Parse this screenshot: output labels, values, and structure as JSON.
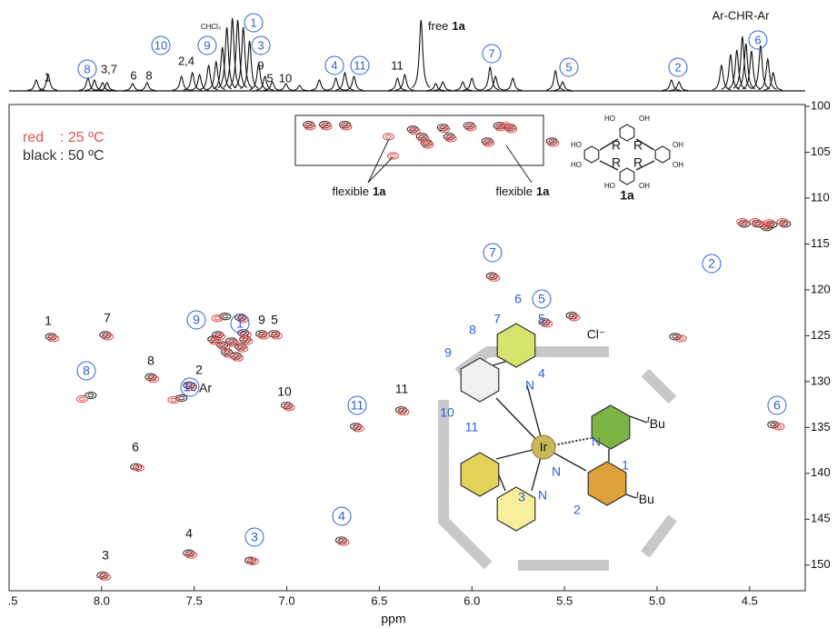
{
  "chart_data": {
    "type": "hsqc",
    "xlabel": "ppm",
    "xlim": [
      8.5,
      4.2
    ],
    "ylim": [
      99.8,
      152.8
    ],
    "xticks": [
      {
        "value": 8.5,
        "label": ".5"
      },
      {
        "value": 8,
        "label": "8.0"
      },
      7.5,
      {
        "value": 7,
        "label": "7.0"
      },
      6.5,
      {
        "value": 6,
        "label": "6.0"
      },
      5.5,
      {
        "value": 5,
        "label": "5.0"
      },
      4.5
    ],
    "yticks": [
      100,
      105,
      110,
      115,
      120,
      125,
      130,
      135,
      140,
      145,
      150
    ],
    "series": [
      {
        "name": "black",
        "label": ": 50 ºC",
        "color": "#333333",
        "x": [
          8.274,
          7.98,
          7.735,
          7.529,
          7.814,
          7.529,
          7.995,
          8.059,
          7.333,
          7.25,
          7.235,
          7.137,
          7.068,
          7.569,
          7.0,
          6.627,
          6.382,
          7.196,
          6.706,
          5.892,
          5.608,
          5.461,
          4.902,
          4.373,
          7.397,
          7.348,
          7.299,
          7.25,
          7.324,
          7.275,
          7.373,
          7.225,
          4.529,
          4.456,
          4.382,
          4.309,
          4.407,
          6.882,
          6.794,
          6.686,
          6.319,
          6.27,
          6.245,
          6.157,
          6.123,
          6.015,
          5.917,
          5.853,
          5.794,
          5.569
        ],
        "y": [
          125.1,
          124.9,
          129.5,
          130.4,
          139.3,
          148.7,
          151.1,
          131.5,
          122.9,
          123.0,
          124.7,
          124.8,
          124.8,
          131.8,
          132.6,
          134.9,
          133.1,
          149.5,
          147.3,
          118.5,
          123.5,
          122.8,
          125.1,
          134.7,
          125.4,
          126.0,
          125.6,
          126.2,
          126.8,
          127.2,
          124.9,
          125.4,
          112.8,
          112.8,
          112.9,
          112.8,
          113.2,
          102.0,
          102.0,
          102.0,
          102.5,
          103.3,
          104.0,
          102.3,
          103.3,
          102.1,
          103.8,
          102.1,
          102.3,
          103.8
        ]
      },
      {
        "name": "red",
        "label": ": 25 ºC",
        "color": "#e0524f",
        "x": [
          8.262,
          7.968,
          7.722,
          7.516,
          7.801,
          7.516,
          7.982,
          8.105,
          7.375,
          7.237,
          7.222,
          7.124,
          7.055,
          7.612,
          6.988,
          6.614,
          6.37,
          7.183,
          6.694,
          5.88,
          5.596,
          5.448,
          4.872,
          4.343,
          7.387,
          7.338,
          7.289,
          7.24,
          7.314,
          7.265,
          7.363,
          7.215,
          4.54,
          4.47,
          4.395,
          4.322,
          4.42,
          6.875,
          6.787,
          6.679,
          6.31,
          6.262,
          6.238,
          6.15,
          6.114,
          6.007,
          5.91,
          5.846,
          5.787,
          5.561,
          6.451,
          6.426,
          5.82
        ],
        "y": [
          125.3,
          125.1,
          129.7,
          130.6,
          139.4,
          148.9,
          151.3,
          131.9,
          123.1,
          123.2,
          124.9,
          125.0,
          125.0,
          132.0,
          132.8,
          135.1,
          133.3,
          149.6,
          147.5,
          118.7,
          123.7,
          123.0,
          125.3,
          134.9,
          125.6,
          126.2,
          125.8,
          126.4,
          127.0,
          127.4,
          125.1,
          125.6,
          112.6,
          112.6,
          112.7,
          112.6,
          113.0,
          102.2,
          102.2,
          102.2,
          102.7,
          103.5,
          104.2,
          102.5,
          103.5,
          102.3,
          104.0,
          102.3,
          102.5,
          104.0,
          103.3,
          105.4,
          102.1
        ]
      }
    ],
    "projection": {
      "x": [
        8.353,
        8.289,
        8.074,
        8.039,
        7.995,
        7.971,
        7.833,
        7.755,
        7.569,
        7.51,
        7.471,
        7.422,
        7.382,
        7.348,
        7.324,
        7.294,
        7.265,
        7.235,
        7.201,
        7.152,
        7.118,
        7.078,
        7.005,
        6.931,
        6.824,
        6.735,
        6.686,
        6.637,
        6.402,
        6.363,
        6.275,
        6.196,
        6.157,
        6.049,
        6.0,
        5.902,
        5.873,
        5.779,
        5.549,
        5.51,
        4.922,
        4.882,
        4.652,
        4.603,
        4.569,
        4.539,
        4.52,
        4.49,
        4.441,
        4.402,
        4.373
      ],
      "heights": [
        12,
        18,
        14,
        12,
        9,
        9,
        8,
        9,
        16,
        20,
        18,
        28,
        32,
        48,
        70,
        80,
        78,
        70,
        55,
        30,
        16,
        10,
        8,
        6,
        12,
        14,
        20,
        16,
        14,
        18,
        78,
        8,
        10,
        10,
        14,
        26,
        16,
        14,
        22,
        10,
        12,
        10,
        28,
        40,
        45,
        60,
        52,
        44,
        50,
        35,
        20
      ]
    },
    "projection_labels": [
      "1",
      "8",
      "3,7",
      "6",
      "8",
      "10",
      "2,4",
      "CHCl₃",
      "9",
      "1",
      "3",
      "9",
      "5",
      "10",
      "4",
      "11",
      "11",
      "7",
      "5",
      "2",
      "Ar-CHR-Ar",
      "6"
    ],
    "free_label": {
      "text": "free",
      "compound": "1a"
    },
    "peak_labels": [
      "1",
      "7",
      "8",
      "2",
      "Ar",
      "6",
      "4",
      "3",
      "8",
      "9",
      "1",
      "9",
      "5",
      "10",
      "10",
      "11",
      "11",
      "3",
      "4",
      "7",
      "5",
      "2",
      "6"
    ],
    "flexible_labels": [
      {
        "text": "flexible",
        "compound": "1a"
      },
      {
        "text": "flexible",
        "compound": "1a"
      }
    ]
  },
  "structures": {
    "complex": {
      "numbers": [
        "6",
        "7",
        "5",
        "8",
        "4",
        "9",
        "10",
        "11",
        "1",
        "3",
        "2"
      ],
      "nitrogens": [
        "N",
        "N",
        "N",
        "N"
      ],
      "metal": "Ir",
      "counterion": "Cl⁻",
      "tbu": [
        {
          "prefix": "t",
          "group": "Bu"
        },
        {
          "prefix": "t",
          "group": "Bu"
        }
      ]
    },
    "host": {
      "name": "1a",
      "substituents": [
        "HO",
        "OH",
        "HO",
        "OH",
        "HO",
        "OH",
        "HO",
        "OH"
      ],
      "r": [
        "R",
        "R",
        "R",
        "R"
      ]
    }
  }
}
